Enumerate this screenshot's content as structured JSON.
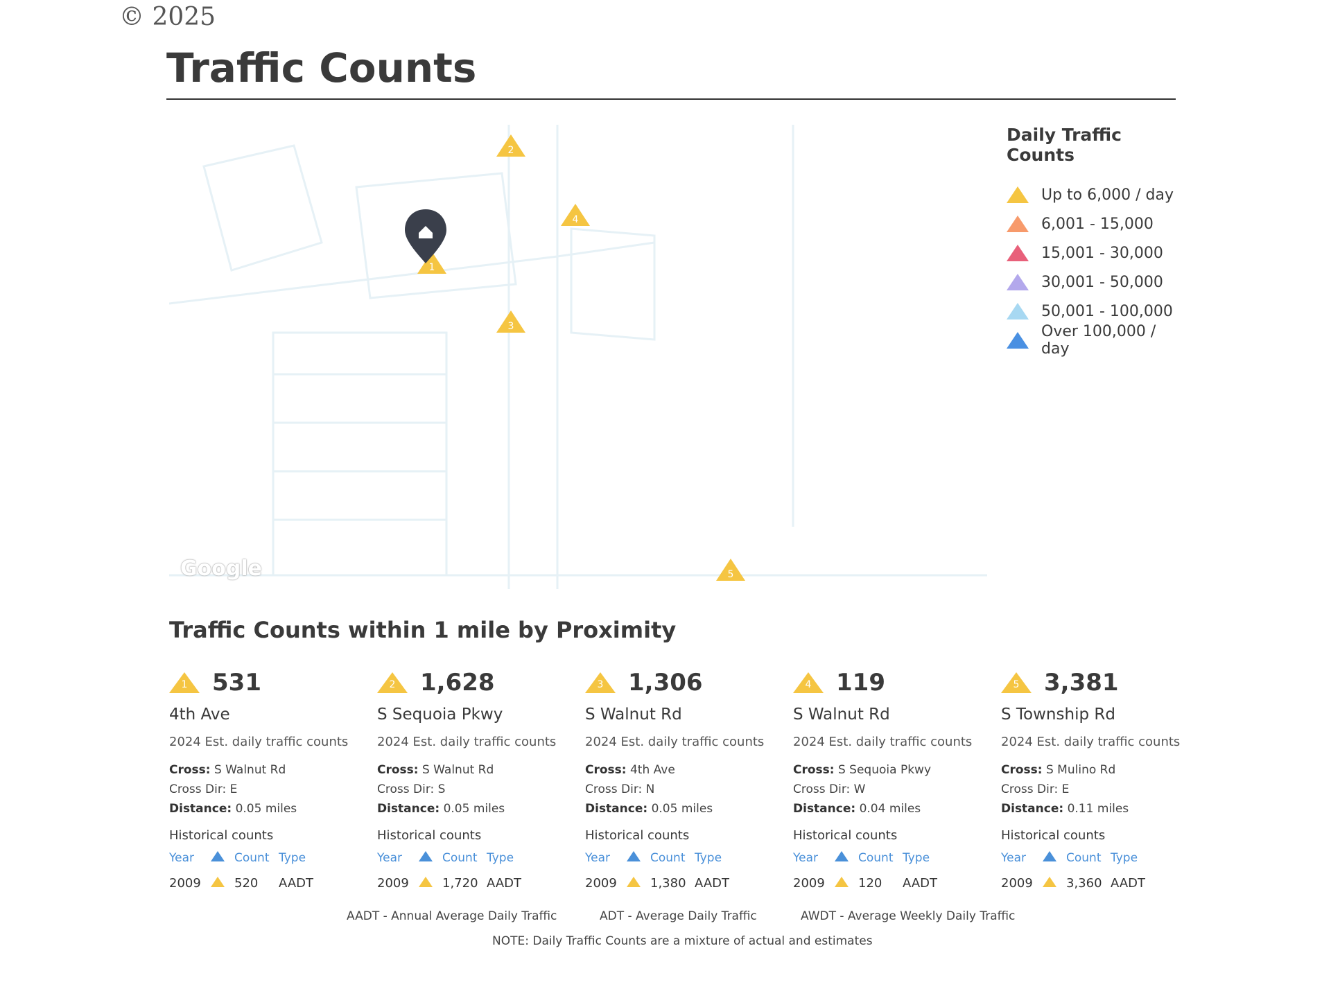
{
  "copyright": "© 2025",
  "title": "Traffic Counts",
  "map": {
    "logo": "Google",
    "markers": [
      "1",
      "2",
      "3",
      "4",
      "5"
    ]
  },
  "legend": {
    "title": "Daily Traffic Counts",
    "items": [
      {
        "label": "Up to 6,000 / day",
        "color": "#f5c542"
      },
      {
        "label": "6,001 - 15,000",
        "color": "#f79a6b"
      },
      {
        "label": "15,001 - 30,000",
        "color": "#e8607a"
      },
      {
        "label": "30,001 - 50,000",
        "color": "#b3a8ec"
      },
      {
        "label": "50,001 - 100,000",
        "color": "#a7d8f2"
      },
      {
        "label": "Over 100,000 / day",
        "color": "#4a90e2"
      }
    ]
  },
  "section_title": "Traffic Counts within 1 mile by Proximity",
  "labels": {
    "cross": "Cross:",
    "cross_dir": "Cross Dir:",
    "distance": "Distance:",
    "historical": "Historical counts",
    "year": "Year",
    "count": "Count",
    "type": "Type",
    "est": "2024 Est. daily traffic counts"
  },
  "cards": [
    {
      "num": "1",
      "count": "531",
      "street": "4th Ave",
      "cross": "S Walnut Rd",
      "dir": "E",
      "distance": "0.05 miles",
      "hist_year": "2009",
      "hist_count": "520",
      "hist_type": "AADT"
    },
    {
      "num": "2",
      "count": "1,628",
      "street": "S Sequoia Pkwy",
      "cross": "S Walnut Rd",
      "dir": "S",
      "distance": "0.05 miles",
      "hist_year": "2009",
      "hist_count": "1,720",
      "hist_type": "AADT"
    },
    {
      "num": "3",
      "count": "1,306",
      "street": "S Walnut Rd",
      "cross": "4th Ave",
      "dir": "N",
      "distance": "0.05 miles",
      "hist_year": "2009",
      "hist_count": "1,380",
      "hist_type": "AADT"
    },
    {
      "num": "4",
      "count": "119",
      "street": "S Walnut Rd",
      "cross": "S Sequoia Pkwy",
      "dir": "W",
      "distance": "0.04 miles",
      "hist_year": "2009",
      "hist_count": "120",
      "hist_type": "AADT"
    },
    {
      "num": "5",
      "count": "3,381",
      "street": "S Township Rd",
      "cross": "S Mulino Rd",
      "dir": "E",
      "distance": "0.11 miles",
      "hist_year": "2009",
      "hist_count": "3,360",
      "hist_type": "AADT"
    }
  ],
  "footer": {
    "aadt": "AADT - Annual Average Daily Traffic",
    "adt": "ADT - Average Daily Traffic",
    "awdt": "AWDT - Average Weekly Daily Traffic",
    "note": "NOTE: Daily Traffic Counts are a mixture of actual and estimates"
  }
}
